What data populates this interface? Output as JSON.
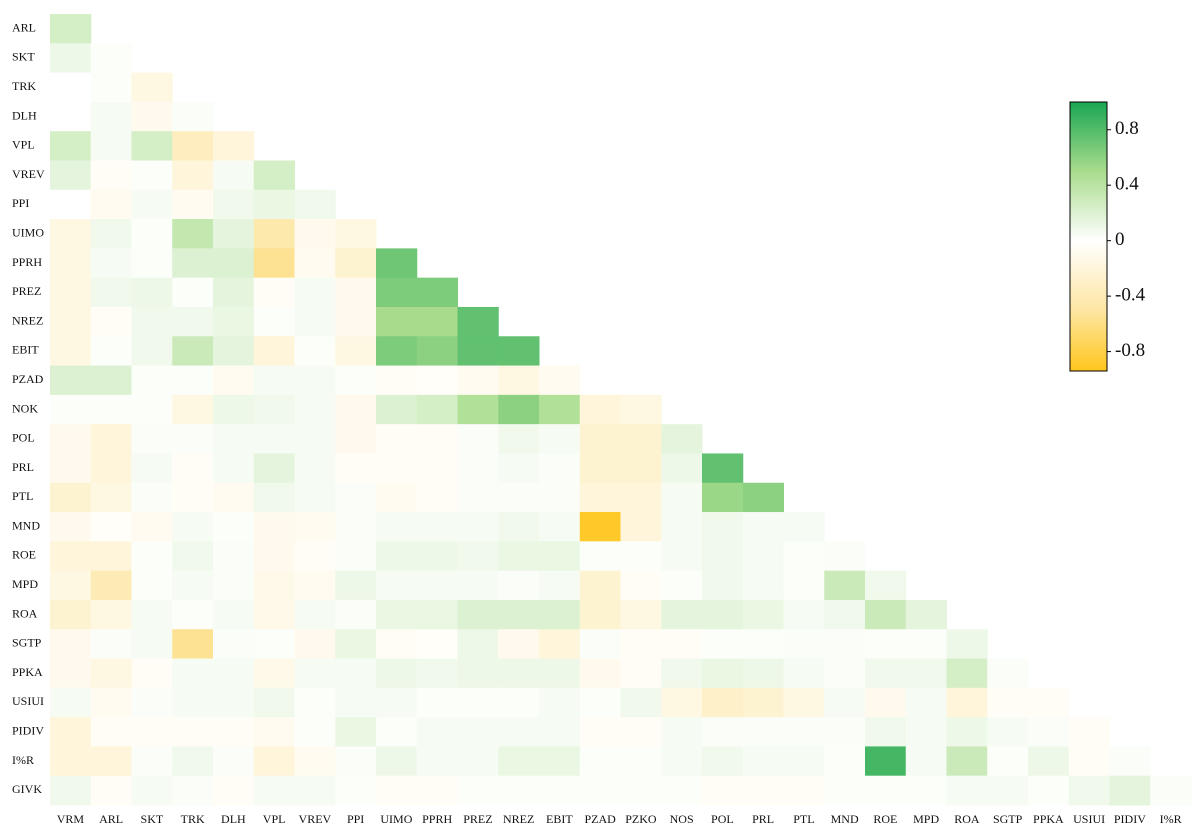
{
  "chart_data": {
    "type": "heatmap",
    "row_labels": [
      "ARL",
      "SKT",
      "TRK",
      "DLH",
      "VPL",
      "VREV",
      "PPI",
      "UIMO",
      "PPRH",
      "PREZ",
      "NREZ",
      "EBIT",
      "PZAD",
      "NOK",
      "POL",
      "PRL",
      "PTL",
      "MND",
      "ROE",
      "MPD",
      "ROA",
      "SGTP",
      "PPKA",
      "USIUI",
      "PIDIV",
      "I%R",
      "GIVK"
    ],
    "col_labels": [
      "VRM",
      "ARL",
      "SKT",
      "TRK",
      "DLH",
      "VPL",
      "VREV",
      "PPI",
      "UIMO",
      "PPRH",
      "PREZ",
      "NREZ",
      "EBIT",
      "PZAD",
      "PZKO",
      "NOS",
      "POL",
      "PRL",
      "PTL",
      "MND",
      "ROE",
      "MPD",
      "ROA",
      "SGTP",
      "PPKA",
      "USIUI",
      "PIDIV",
      "I%R"
    ],
    "values": [
      [
        0.25
      ],
      [
        0.1,
        0.02
      ],
      [
        0.0,
        0.02,
        -0.15
      ],
      [
        0.0,
        0.05,
        -0.1,
        0.03
      ],
      [
        0.25,
        0.05,
        0.25,
        -0.35,
        -0.2
      ],
      [
        0.15,
        -0.05,
        0.02,
        -0.2,
        0.05,
        0.25
      ],
      [
        0.0,
        -0.08,
        0.05,
        -0.08,
        0.08,
        0.12,
        0.08
      ],
      [
        -0.15,
        0.08,
        0.02,
        0.35,
        0.15,
        -0.45,
        -0.1,
        -0.15
      ],
      [
        -0.15,
        0.05,
        0.02,
        0.2,
        0.2,
        -0.55,
        -0.08,
        -0.25,
        0.7
      ],
      [
        -0.15,
        0.08,
        0.1,
        0.02,
        0.15,
        -0.05,
        0.05,
        -0.1,
        0.65,
        0.65
      ],
      [
        -0.15,
        -0.05,
        0.08,
        0.08,
        0.12,
        0.02,
        0.05,
        -0.1,
        0.5,
        0.5,
        0.75
      ],
      [
        -0.15,
        0.02,
        0.08,
        0.3,
        0.15,
        -0.2,
        0.02,
        -0.15,
        0.65,
        0.6,
        0.75,
        0.75
      ],
      [
        0.2,
        0.2,
        0.02,
        0.02,
        -0.08,
        0.05,
        0.05,
        0.02,
        -0.05,
        -0.03,
        -0.08,
        -0.15,
        -0.08
      ],
      [
        0.02,
        0.02,
        0.02,
        -0.15,
        0.1,
        0.08,
        0.05,
        -0.1,
        0.2,
        0.25,
        0.45,
        0.6,
        0.45,
        -0.2,
        -0.15
      ],
      [
        -0.1,
        -0.2,
        0.03,
        0.03,
        0.05,
        0.05,
        0.05,
        -0.1,
        -0.05,
        -0.05,
        0.03,
        0.08,
        0.05,
        -0.25,
        -0.25,
        0.15
      ],
      [
        -0.1,
        -0.2,
        0.05,
        -0.05,
        0.05,
        0.15,
        0.05,
        -0.05,
        -0.05,
        -0.05,
        0.03,
        0.05,
        0.03,
        -0.25,
        -0.25,
        0.1,
        0.75
      ],
      [
        -0.25,
        -0.15,
        0.03,
        -0.05,
        -0.08,
        0.08,
        0.05,
        0.03,
        -0.08,
        -0.05,
        0.03,
        0.03,
        0.03,
        -0.2,
        -0.2,
        0.05,
        0.55,
        0.6
      ],
      [
        -0.1,
        -0.03,
        -0.08,
        0.05,
        0.02,
        -0.1,
        -0.08,
        0.03,
        0.05,
        0.05,
        0.05,
        0.08,
        0.05,
        -0.9,
        -0.2,
        0.05,
        0.08,
        0.05,
        0.05
      ],
      [
        -0.2,
        -0.2,
        0.02,
        0.08,
        0.03,
        -0.1,
        -0.05,
        0.03,
        0.1,
        0.1,
        0.08,
        0.12,
        0.12,
        0.02,
        0.02,
        0.05,
        0.08,
        0.05,
        0.02,
        0.03
      ],
      [
        -0.15,
        -0.4,
        0.02,
        0.05,
        0.03,
        -0.12,
        -0.08,
        0.1,
        0.05,
        0.05,
        0.05,
        0.03,
        0.05,
        -0.25,
        -0.05,
        0.02,
        0.08,
        0.05,
        0.02,
        0.3,
        0.08
      ],
      [
        -0.25,
        -0.15,
        0.05,
        0.02,
        0.05,
        -0.12,
        0.05,
        0.03,
        0.12,
        0.12,
        0.2,
        0.2,
        0.2,
        -0.25,
        -0.15,
        0.15,
        0.15,
        0.12,
        0.05,
        0.08,
        0.3,
        0.15
      ],
      [
        -0.1,
        0.03,
        0.05,
        -0.55,
        0.03,
        0.02,
        -0.1,
        0.12,
        -0.05,
        -0.03,
        0.1,
        -0.1,
        -0.2,
        0.03,
        -0.05,
        -0.05,
        0.02,
        0.02,
        0.03,
        0.03,
        0.02,
        0.02,
        0.1
      ],
      [
        -0.1,
        -0.15,
        -0.05,
        0.05,
        0.05,
        -0.12,
        0.05,
        0.05,
        0.1,
        0.08,
        0.1,
        0.1,
        0.1,
        -0.1,
        -0.05,
        0.08,
        0.12,
        0.1,
        0.05,
        0.03,
        0.08,
        0.08,
        0.25,
        0.03
      ],
      [
        0.05,
        -0.08,
        0.03,
        0.05,
        0.05,
        0.08,
        0.02,
        0.05,
        0.05,
        0.02,
        0.02,
        0.02,
        0.05,
        0.02,
        0.08,
        -0.15,
        -0.3,
        -0.25,
        -0.15,
        0.05,
        -0.1,
        0.05,
        -0.2,
        -0.05,
        -0.05
      ],
      [
        -0.2,
        -0.05,
        -0.05,
        -0.05,
        -0.05,
        -0.08,
        0.02,
        0.12,
        0.02,
        0.05,
        0.05,
        0.05,
        0.05,
        -0.05,
        -0.05,
        0.05,
        0.03,
        0.03,
        0.03,
        0.03,
        0.08,
        0.05,
        0.1,
        0.05,
        0.03,
        -0.05
      ],
      [
        -0.2,
        -0.2,
        0.03,
        0.08,
        0.03,
        -0.2,
        -0.08,
        0.03,
        0.1,
        0.05,
        0.05,
        0.12,
        0.12,
        0.02,
        0.02,
        0.05,
        0.08,
        0.05,
        0.05,
        0.02,
        0.85,
        0.05,
        0.3,
        0.02,
        0.1,
        -0.05,
        0.03
      ],
      [
        0.08,
        -0.05,
        0.05,
        0.03,
        -0.05,
        0.05,
        0.05,
        0.02,
        -0.05,
        -0.05,
        0.02,
        0.02,
        0.02,
        0.02,
        0.02,
        0.02,
        -0.05,
        -0.05,
        -0.05,
        0.02,
        0.02,
        0.02,
        0.05,
        0.05,
        0.02,
        0.08,
        0.15,
        0.03
      ]
    ],
    "clim": [
      -0.94,
      1
    ],
    "cticks": [
      -0.8,
      -0.4,
      0,
      0.4,
      0.8
    ],
    "colorscale": [
      "#ffc20a",
      "#fde6a3",
      "#ffffff",
      "#a8dc8c",
      "#1aa653"
    ]
  }
}
